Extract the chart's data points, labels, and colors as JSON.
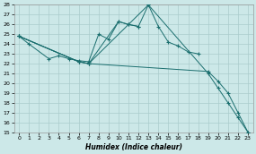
{
  "xlabel": "Humidex (Indice chaleur)",
  "background_color": "#cce8e8",
  "grid_color": "#aacccc",
  "line_color": "#1a6e6e",
  "xlim": [
    -0.5,
    23.5
  ],
  "ylim": [
    15,
    28
  ],
  "yticks": [
    15,
    16,
    17,
    18,
    19,
    20,
    21,
    22,
    23,
    24,
    25,
    26,
    27,
    28
  ],
  "xticks": [
    0,
    1,
    2,
    3,
    4,
    5,
    6,
    7,
    8,
    9,
    10,
    11,
    12,
    13,
    14,
    15,
    16,
    17,
    18,
    19,
    20,
    21,
    22,
    23
  ],
  "series1_x": [
    0,
    1,
    3,
    4,
    5,
    6,
    7,
    8,
    9,
    10,
    11,
    12
  ],
  "series1_y": [
    24.8,
    24.0,
    22.5,
    22.8,
    22.5,
    22.3,
    22.2,
    25.0,
    24.5,
    26.3,
    26.0,
    25.8
  ],
  "series2_x": [
    0,
    6,
    7,
    10,
    11,
    12,
    13,
    14,
    15,
    16,
    17,
    18
  ],
  "series2_y": [
    24.8,
    22.2,
    22.0,
    26.3,
    26.0,
    25.8,
    28.0,
    25.8,
    24.2,
    23.8,
    23.2,
    23.0
  ],
  "series3_x": [
    0,
    6,
    7,
    13,
    19,
    20,
    21,
    22,
    23
  ],
  "series3_y": [
    24.8,
    22.2,
    22.0,
    28.0,
    21.0,
    19.5,
    18.0,
    16.5,
    15.0
  ],
  "series4_x": [
    0,
    6,
    7,
    19,
    20,
    21,
    22,
    23
  ],
  "series4_y": [
    24.8,
    22.2,
    22.0,
    21.2,
    20.2,
    19.0,
    17.0,
    15.0
  ]
}
